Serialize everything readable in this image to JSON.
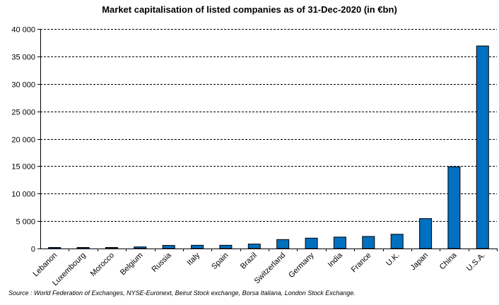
{
  "chart_data": {
    "type": "bar",
    "title": "Market capitalisation of listed companies as of 31-Dec-2020 (in €bn)",
    "xlabel": "",
    "ylabel": "",
    "categories": [
      "Lebanon",
      "Luxembourg",
      "Morocco",
      "Belgium",
      "Russia",
      "Italy",
      "Spain",
      "Brazil",
      "Switzerland",
      "Germany",
      "India",
      "France",
      "U.K.",
      "Japan",
      "China",
      "U.S.A."
    ],
    "values": [
      20,
      40,
      60,
      300,
      560,
      590,
      590,
      810,
      1630,
      1890,
      2090,
      2200,
      2600,
      5450,
      14900,
      36900
    ],
    "ylim": [
      0,
      40000
    ],
    "yticks": [
      0,
      5000,
      10000,
      15000,
      20000,
      25000,
      30000,
      35000,
      40000
    ],
    "ytick_labels": [
      "0",
      "5 000",
      "10 000",
      "15 000",
      "20 000",
      "25 000",
      "30 000",
      "35 000",
      "40 000"
    ],
    "grid": true,
    "bar_color": "#0070C0"
  },
  "footer": {
    "source": "Source : World Federation of Exchanges, NYSE-Euronext, Beirut Stock exchange, Borsa Italiana, London Stock Exchange."
  }
}
